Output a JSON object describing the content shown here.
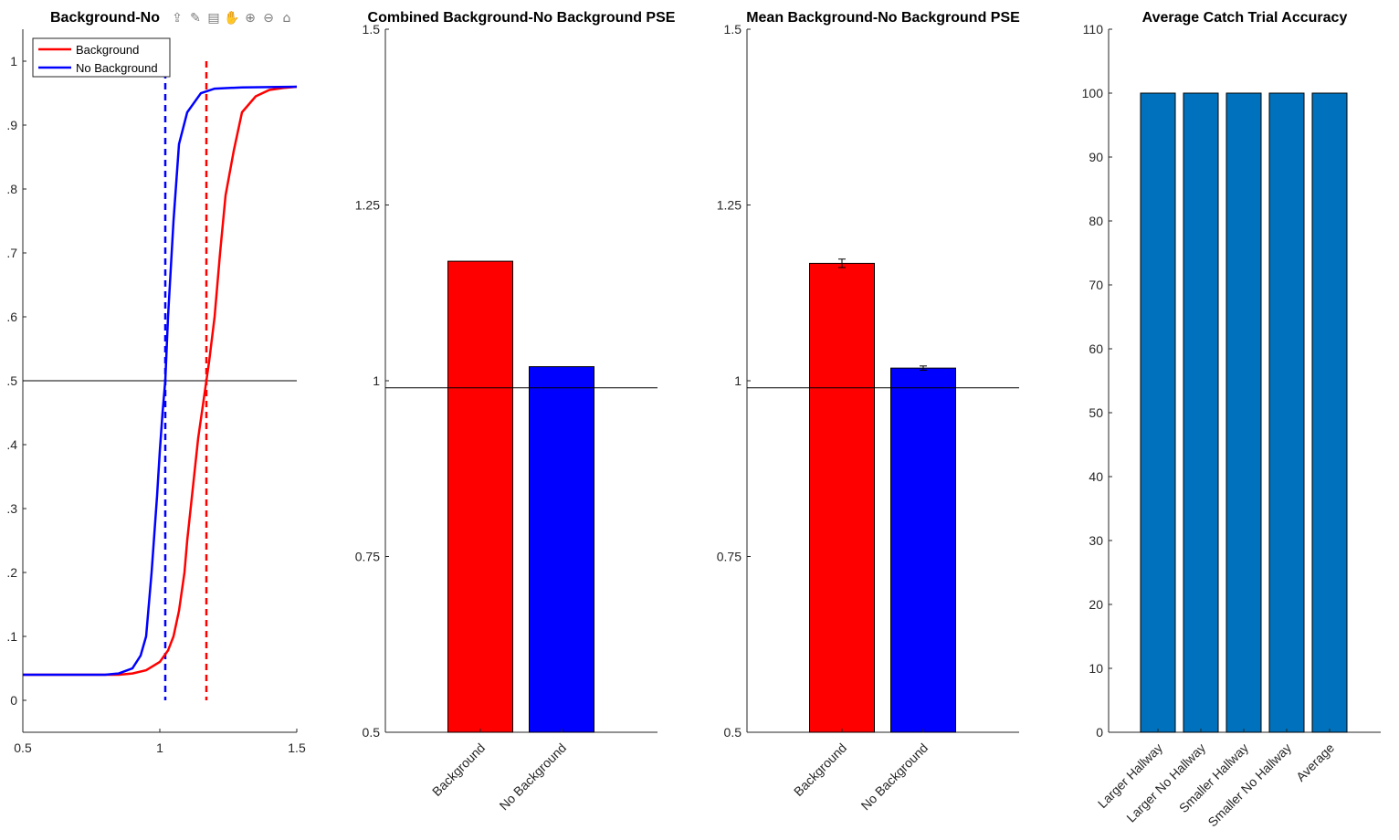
{
  "chart_data": [
    {
      "type": "line",
      "title": "Background-No",
      "xlabel": "",
      "ylabel": "",
      "xlim": [
        0.5,
        1.5
      ],
      "ylim": [
        -0.05,
        1.05
      ],
      "xticks": [
        0.5,
        1,
        1.5
      ],
      "xtick_labels": [
        "0.5",
        "1",
        "1.5"
      ],
      "yticks": [
        0,
        0.1,
        0.2,
        0.3,
        0.4,
        0.5,
        0.6,
        0.7,
        0.8,
        0.9,
        1
      ],
      "ytick_labels": [
        "0",
        ".1",
        ".2",
        ".3",
        ".4",
        ".5",
        ".6",
        ".7",
        ".8",
        ".9",
        "1"
      ],
      "hlines": [
        0.5
      ],
      "legend": {
        "placement": "top-left"
      },
      "series": [
        {
          "name": "Background",
          "color": "#ff0000",
          "pse": 1.17,
          "x": [
            0.5,
            0.85,
            0.9,
            0.95,
            1.0,
            1.03,
            1.05,
            1.07,
            1.09,
            1.1,
            1.12,
            1.14,
            1.16,
            1.17,
            1.18,
            1.2,
            1.22,
            1.24,
            1.27,
            1.3,
            1.35,
            1.4,
            1.45,
            1.5
          ],
          "y": [
            0.04,
            0.04,
            0.042,
            0.047,
            0.06,
            0.078,
            0.1,
            0.14,
            0.2,
            0.25,
            0.33,
            0.41,
            0.47,
            0.5,
            0.53,
            0.6,
            0.7,
            0.79,
            0.86,
            0.92,
            0.945,
            0.955,
            0.958,
            0.96
          ]
        },
        {
          "name": "No Background",
          "color": "#0000ff",
          "pse": 1.02,
          "x": [
            0.5,
            0.8,
            0.85,
            0.9,
            0.93,
            0.95,
            0.97,
            0.99,
            1.0,
            1.01,
            1.02,
            1.03,
            1.05,
            1.07,
            1.1,
            1.15,
            1.2,
            1.3,
            1.5
          ],
          "y": [
            0.04,
            0.04,
            0.042,
            0.05,
            0.07,
            0.1,
            0.2,
            0.32,
            0.39,
            0.45,
            0.5,
            0.6,
            0.75,
            0.87,
            0.92,
            0.95,
            0.957,
            0.959,
            0.96
          ]
        }
      ]
    },
    {
      "type": "bar",
      "title": "Combined Background-No Background PSE",
      "xlabel": "",
      "ylabel": "",
      "categories": [
        "Background",
        "No Background"
      ],
      "values": [
        1.17,
        1.02
      ],
      "colors": [
        "#ff0000",
        "#0000ff"
      ],
      "ylim": [
        0.5,
        1.5
      ],
      "yticks": [
        0.5,
        0.75,
        1,
        1.25,
        1.5
      ],
      "ytick_labels": [
        "0.5",
        "0.75",
        "1",
        "1.25",
        "1.5"
      ],
      "hlines": [
        0.99
      ]
    },
    {
      "type": "bar",
      "title": "Mean Background-No Background PSE",
      "xlabel": "",
      "ylabel": "",
      "categories": [
        "Background",
        "No Background"
      ],
      "values": [
        1.167,
        1.018
      ],
      "errors": [
        0.006,
        0.003
      ],
      "colors": [
        "#ff0000",
        "#0000ff"
      ],
      "ylim": [
        0.5,
        1.5
      ],
      "yticks": [
        0.5,
        0.75,
        1,
        1.25,
        1.5
      ],
      "ytick_labels": [
        "0.5",
        "0.75",
        "1",
        "1.25",
        "1.5"
      ],
      "hlines": [
        0.99
      ]
    },
    {
      "type": "bar",
      "title": "Average Catch Trial Accuracy",
      "xlabel": "",
      "ylabel": "",
      "categories": [
        "Larger Hallway",
        "Larger No Hallway",
        "Smaller Hallway",
        "Smaller No Hallway",
        "Average"
      ],
      "values": [
        100,
        100,
        100,
        100,
        100
      ],
      "errors": [
        0,
        0,
        0,
        0,
        0
      ],
      "colors": [
        "#0072bd",
        "#0072bd",
        "#0072bd",
        "#0072bd",
        "#0072bd"
      ],
      "ylim": [
        0,
        110
      ],
      "yticks": [
        0,
        10,
        20,
        30,
        40,
        50,
        60,
        70,
        80,
        90,
        100,
        110
      ],
      "ytick_labels": [
        "0",
        "10",
        "20",
        "30",
        "40",
        "50",
        "60",
        "70",
        "80",
        "90",
        "100",
        "110"
      ],
      "hlines": []
    }
  ],
  "toolbar": {
    "icons": [
      "export-icon",
      "brush-icon",
      "datatip-icon",
      "pan-icon",
      "zoom-in-icon",
      "zoom-out-icon",
      "home-icon"
    ]
  }
}
